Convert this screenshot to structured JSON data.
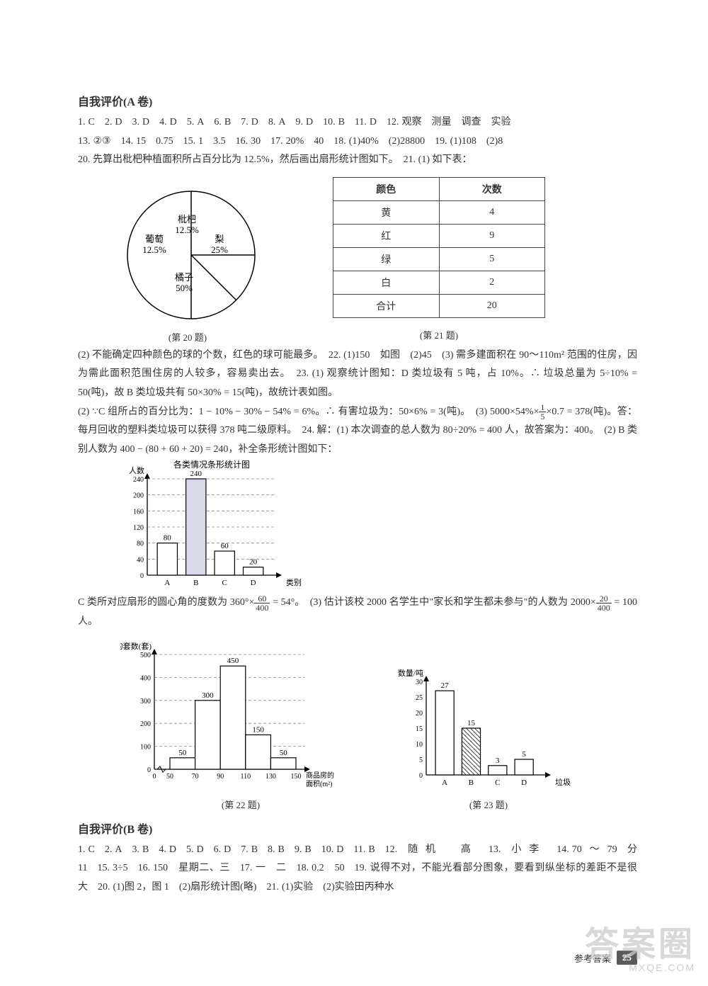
{
  "sectionA": {
    "title": "自我评价(A 卷)",
    "line1": [
      {
        "n": "1.",
        "a": "C"
      },
      {
        "n": "2.",
        "a": "D"
      },
      {
        "n": "3.",
        "a": "D"
      },
      {
        "n": "4.",
        "a": "D"
      },
      {
        "n": "5.",
        "a": "A"
      },
      {
        "n": "6.",
        "a": "B"
      },
      {
        "n": "7.",
        "a": "D"
      },
      {
        "n": "8.",
        "a": "A"
      },
      {
        "n": "9.",
        "a": "D"
      },
      {
        "n": "10.",
        "a": "B"
      },
      {
        "n": "11.",
        "a": "D"
      },
      {
        "n": "12.",
        "a": "观察　测量　调查　实验"
      }
    ],
    "line2": [
      {
        "n": "13.",
        "a": "②③"
      },
      {
        "n": "14.",
        "a": "15　0.75"
      },
      {
        "n": "15.",
        "a": "1　3.5"
      },
      {
        "n": "16.",
        "a": "30"
      },
      {
        "n": "17.",
        "a": "20%　40"
      },
      {
        "n": "18.",
        "a": "(1)40%　(2)28800"
      },
      {
        "n": "19.",
        "a": "(1)108　(2)8"
      }
    ],
    "line3": "20. 先算出枇杷种植面积所占百分比为 12.5%，然后画出扇形统计图如下。　21. (1) 如下表：",
    "pie": {
      "type": "pie",
      "slices": [
        {
          "label": "梨",
          "pct": "25%",
          "color": "#ffffff",
          "start": 0,
          "end": 90
        },
        {
          "label": "枇杷",
          "pct": "12.5%",
          "color": "#ffffff",
          "start": 90,
          "end": 135
        },
        {
          "label": "葡萄",
          "pct": "12.5%",
          "color": "#ffffff",
          "start": 135,
          "end": 180
        },
        {
          "label": "橘子",
          "pct": "50%",
          "color": "#ffffff",
          "start": 180,
          "end": 360
        }
      ],
      "stroke": "#000000",
      "caption": "(第 20 题)"
    },
    "table21": {
      "headers": [
        "颜色",
        "次数"
      ],
      "rows": [
        [
          "黄",
          "4"
        ],
        [
          "红",
          "9"
        ],
        [
          "绿",
          "5"
        ],
        [
          "白",
          "2"
        ],
        [
          "合计",
          "20"
        ]
      ],
      "caption": "(第 21 题)"
    },
    "para1": "(2) 不能确定四种颜色的球的个数，红色的球可能最多。　22. (1)150　如图　(2)45　(3) 需多建面积在 90～110m² 范围的住房，因为需此面积范围住房的人较多，容易卖出去。　23. (1) 观察统计图知：D 类垃圾有 5 吨，占 10%。∴ 垃圾总量为 5÷10% = 50(吨)，故 B 类垃圾共有 50×30% = 15(吨)，故统计表如图。",
    "para2a": "(2) ∵C 组所占的百分比为：1 − 10% − 30% − 54% = 6%。∴ 有害垃圾为：50×6% = 3(吨)。　(3) 5000×54%×",
    "para2_frac": {
      "n": "1",
      "d": "5"
    },
    "para2b": "×0.7 = 378(吨)。答：每月回收的塑料类垃圾可以获得 378 吨二级原料。　24. 解：(1) 本次调查的总人数为 80÷20% = 400 人，故答案为：400。　(2) B 类别人数为 400 − (80 + 60 + 20) = 240，补全条形统计图如下：",
    "bar24": {
      "type": "bar",
      "title": "各类情况条形统计图",
      "ylabel": "人数",
      "xlabel": "类别",
      "categories": [
        "A",
        "B",
        "C",
        "D"
      ],
      "values": [
        80,
        240,
        60,
        20
      ],
      "ylim": [
        0,
        240
      ],
      "yticks": [
        0,
        40,
        80,
        120,
        160,
        200,
        240
      ],
      "bar_color": "#ffffff",
      "bar_border": "#000000",
      "highlight_index": 1,
      "highlight_fill": "#d8d8e8",
      "grid_dash": "4,3"
    },
    "para3a": "C 类所对应扇形的圆心角的度数为 360°×",
    "para3_frac": {
      "n": "60",
      "d": "400"
    },
    "para3b": " = 54°。　(3) 估计该校 2000 名学生中\"家长和学生都未参与\"的人数为 2000×",
    "para3_frac2": {
      "n": "20",
      "d": "400"
    },
    "para3c": " = 100 人。",
    "bar22": {
      "type": "bar",
      "ylabel": "卖房的套数(套)",
      "xlabel": "商品房的\n面积(m²)",
      "edges": [
        50,
        70,
        90,
        110,
        130,
        150
      ],
      "xticks": [
        "0",
        "50",
        "70",
        "90",
        "110",
        "130",
        "150"
      ],
      "values": [
        50,
        300,
        450,
        150,
        50
      ],
      "ylim": [
        0,
        500
      ],
      "yticks": [
        0,
        100,
        200,
        300,
        400,
        500
      ],
      "bar_color": "#ffffff",
      "bar_border": "#000000",
      "grid_dash": "4,3",
      "caption": "(第 22 题)"
    },
    "bar23": {
      "type": "bar",
      "ylabel": "数量/吨",
      "xlabel": "垃圾",
      "categories": [
        "A",
        "B",
        "C",
        "D"
      ],
      "values": [
        27,
        15,
        3,
        5
      ],
      "ylim": [
        0,
        30
      ],
      "yticks": [
        0,
        5,
        10,
        15,
        20,
        25,
        30
      ],
      "bar_color": "#ffffff",
      "bar_border": "#000000",
      "hatch_index": 1,
      "caption": "(第 23 题)"
    }
  },
  "sectionB": {
    "title": "自我评价(B 卷)",
    "line1": [
      {
        "n": "1.",
        "a": "C"
      },
      {
        "n": "2.",
        "a": "A"
      },
      {
        "n": "3.",
        "a": "B"
      },
      {
        "n": "4.",
        "a": "D"
      },
      {
        "n": "5.",
        "a": "D"
      },
      {
        "n": "6.",
        "a": "D"
      },
      {
        "n": "7.",
        "a": "B"
      },
      {
        "n": "8.",
        "a": "B"
      },
      {
        "n": "9.",
        "a": "B"
      },
      {
        "n": "10.",
        "a": "D"
      },
      {
        "n": "11.",
        "a": "B"
      },
      {
        "n": "12.",
        "a": "随机　高"
      },
      {
        "n": "13.",
        "a": "小李"
      },
      {
        "n": "14.",
        "a": "70～79 分　11"
      },
      {
        "n": "15.",
        "a": "3÷5"
      },
      {
        "n": "16.",
        "a": "150　星期二、三"
      },
      {
        "n": "17.",
        "a": "一　二"
      },
      {
        "n": "18.",
        "a": "0.2　50"
      },
      {
        "n": "19.",
        "a": "说得不对，不能光看部分图象，要看到纵坐标的差距不是很大"
      },
      {
        "n": "20.",
        "a": "(1)图 2，图 1　(2)扇形统计图(略)"
      },
      {
        "n": "21.",
        "a": "(1)实验　(2)实验田丙种水"
      }
    ]
  },
  "footer": {
    "label": "参考答案",
    "page": "25"
  },
  "watermark": {
    "big": "答案圈",
    "small": "MXQE.COM"
  }
}
